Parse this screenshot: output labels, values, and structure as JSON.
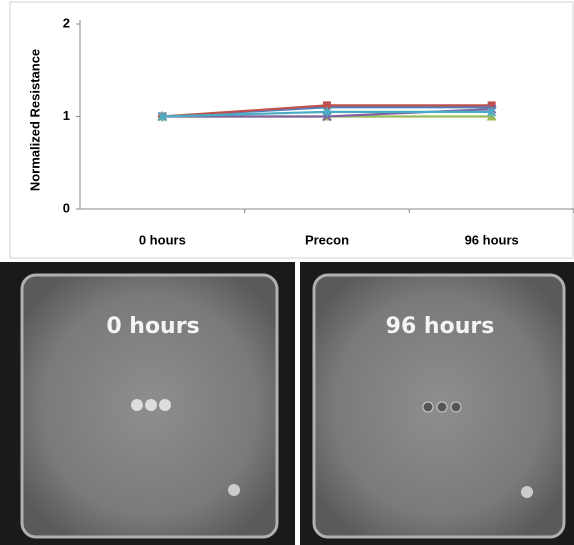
{
  "chart_data": {
    "type": "line",
    "y_label": "Normalized Resistance",
    "categories": [
      "0 hours",
      "Precon",
      "96 hours"
    ],
    "series": [
      {
        "color": "#4f81bd",
        "marker": "diamond",
        "values": [
          1,
          1.1,
          1.1
        ]
      },
      {
        "color": "#c0504d",
        "marker": "square",
        "values": [
          1,
          1.12,
          1.12
        ]
      },
      {
        "color": "#9bbb59",
        "marker": "triangle",
        "values": [
          1,
          1.0,
          1.0
        ]
      },
      {
        "color": "#8064a2",
        "marker": "x",
        "values": [
          1,
          1.0,
          1.08
        ]
      },
      {
        "color": "#4bacc6",
        "marker": "star",
        "values": [
          1,
          1.05,
          1.05
        ]
      }
    ],
    "ylim": [
      0,
      2
    ],
    "yticks": [
      0,
      1,
      2
    ],
    "grid": false
  },
  "images": [
    {
      "label": "0 hours"
    },
    {
      "label": "96 hours"
    }
  ]
}
